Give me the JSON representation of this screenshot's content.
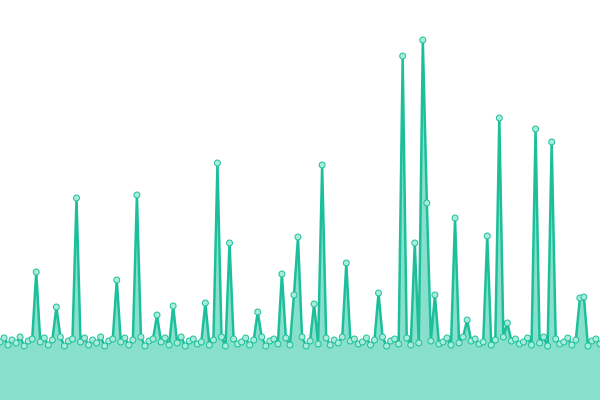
{
  "chart_data": {
    "type": "area",
    "color": "#1dbf9a",
    "fill": "#88e0cc",
    "marker_fill": "#a8ecd9",
    "ylim": [
      0,
      400
    ],
    "values": [
      58,
      62,
      55,
      60,
      57,
      63,
      54,
      59,
      61,
      128,
      58,
      62,
      55,
      60,
      93,
      63,
      54,
      59,
      61,
      202,
      58,
      62,
      55,
      60,
      57,
      63,
      54,
      59,
      61,
      120,
      58,
      62,
      55,
      60,
      205,
      63,
      54,
      59,
      61,
      85,
      58,
      62,
      55,
      94,
      57,
      63,
      54,
      59,
      61,
      56,
      58,
      97,
      55,
      60,
      237,
      63,
      54,
      157,
      61,
      56,
      58,
      62,
      55,
      60,
      88,
      63,
      54,
      59,
      61,
      56,
      126,
      62,
      55,
      105,
      163,
      63,
      54,
      59,
      96,
      56,
      235,
      62,
      55,
      60,
      57,
      63,
      137,
      59,
      61,
      56,
      58,
      62,
      55,
      60,
      107,
      63,
      54,
      59,
      61,
      56,
      344,
      62,
      55,
      157,
      57,
      360,
      197,
      59,
      105,
      56,
      58,
      62,
      55,
      182,
      57,
      63,
      80,
      59,
      61,
      56,
      58,
      164,
      55,
      60,
      282,
      63,
      77,
      59,
      61,
      56,
      58,
      62,
      55,
      271,
      57,
      63,
      54,
      258,
      61,
      56,
      58,
      62,
      55,
      60,
      102,
      103,
      54,
      59,
      61,
      56
    ]
  }
}
